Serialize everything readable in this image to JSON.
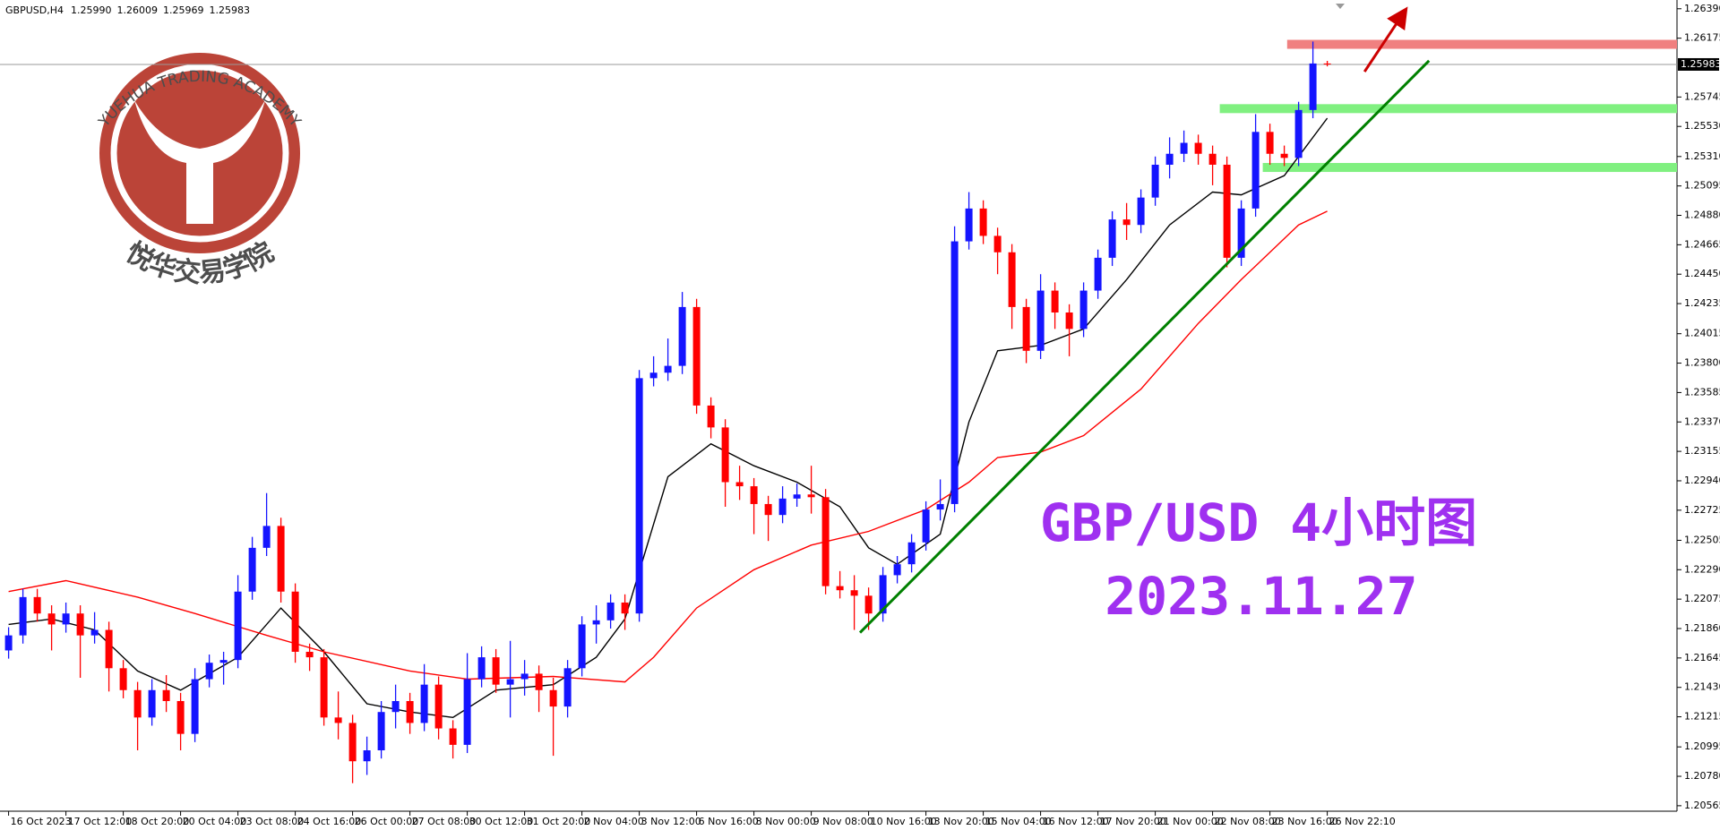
{
  "chart_data": {
    "type": "candlestick",
    "symbol": "GBPUSD,H4",
    "last_value_labels": [
      "1.25990",
      "1.26009",
      "1.25969",
      "1.25983"
    ],
    "xlim": [
      -0.6,
      116.4
    ],
    "ylim": [
      1.20525,
      1.26454
    ],
    "up_color": "#1414ff",
    "down_color": "#ff0000",
    "xticks": [
      {
        "value": 0,
        "label": "16 Oct 2023"
      },
      {
        "value": 4,
        "label": "17 Oct 12:00"
      },
      {
        "value": 8,
        "label": "18 Oct 20:00"
      },
      {
        "value": 12,
        "label": "20 Oct 04:00"
      },
      {
        "value": 16,
        "label": "23 Oct 08:00"
      },
      {
        "value": 20,
        "label": "24 Oct 16:00"
      },
      {
        "value": 24,
        "label": "26 Oct 00:00"
      },
      {
        "value": 28,
        "label": "27 Oct 08:00"
      },
      {
        "value": 32,
        "label": "30 Oct 12:00"
      },
      {
        "value": 36,
        "label": "31 Oct 20:00"
      },
      {
        "value": 40,
        "label": "2 Nov 04:00"
      },
      {
        "value": 44,
        "label": "3 Nov 12:00"
      },
      {
        "value": 48,
        "label": "6 Nov 16:00"
      },
      {
        "value": 52,
        "label": "8 Nov 00:00"
      },
      {
        "value": 56,
        "label": "9 Nov 08:00"
      },
      {
        "value": 60,
        "label": "10 Nov 16:00"
      },
      {
        "value": 64,
        "label": "13 Nov 20:00"
      },
      {
        "value": 68,
        "label": "15 Nov 04:00"
      },
      {
        "value": 72,
        "label": "16 Nov 12:00"
      },
      {
        "value": 76,
        "label": "17 Nov 20:00"
      },
      {
        "value": 80,
        "label": "21 Nov 00:00"
      },
      {
        "value": 84,
        "label": "22 Nov 08:00"
      },
      {
        "value": 88,
        "label": "23 Nov 16:00"
      },
      {
        "value": 92,
        "label": "26 Nov 22:10"
      }
    ],
    "yticks": [
      {
        "value": 1.2639,
        "label": "1.26390"
      },
      1.26175,
      1.25745,
      {
        "value": 1.2553,
        "label": "1.25530"
      },
      {
        "value": 1.2531,
        "label": "1.25310"
      },
      1.25095,
      {
        "value": 1.2488,
        "label": "1.24880"
      },
      1.24665,
      {
        "value": 1.2445,
        "label": "1.24450"
      },
      1.24235,
      1.24015,
      {
        "value": 1.238,
        "label": "1.23800"
      },
      1.23585,
      {
        "value": 1.2337,
        "label": "1.23370"
      },
      1.23155,
      {
        "value": 1.2294,
        "label": "1.22940"
      },
      1.22725,
      1.22505,
      {
        "value": 1.2229,
        "label": "1.22290"
      },
      1.22075,
      {
        "value": 1.2186,
        "label": "1.21860"
      },
      1.21645,
      {
        "value": 1.2143,
        "label": "1.21430"
      },
      1.21215,
      1.20995,
      {
        "value": 1.2078,
        "label": "1.20780"
      },
      1.20565
    ],
    "open": [
      1.217,
      1.2181,
      1.2209,
      1.2197,
      1.2189,
      1.2197,
      1.2181,
      1.2185,
      1.2157,
      1.2141,
      1.2121,
      1.2141,
      1.2133,
      1.2109,
      1.2149,
      1.2161,
      1.2163,
      1.2213,
      1.2245,
      1.2261,
      1.2213,
      1.2169,
      1.2165,
      1.2121,
      1.2117,
      1.2089,
      1.2097,
      1.2125,
      1.2133,
      1.2117,
      1.2145,
      1.2113,
      1.2101,
      1.2149,
      1.2165,
      1.2145,
      1.2149,
      1.2153,
      1.2141,
      1.2129,
      1.2157,
      1.2189,
      1.2192,
      1.2205,
      1.2197,
      1.2369,
      1.2373,
      1.2378,
      1.2421,
      1.2349,
      1.2333,
      1.2293,
      1.229,
      1.2277,
      1.2269,
      1.2281,
      1.2284,
      1.2282,
      1.2217,
      1.2214,
      1.221,
      1.2197,
      1.2225,
      1.2233,
      1.2249,
      1.2273,
      1.2277,
      1.2469,
      1.2493,
      1.2473,
      1.2461,
      1.2421,
      1.2389,
      1.2433,
      1.2417,
      1.2405,
      1.2433,
      1.2457,
      1.2485,
      1.2481,
      1.2501,
      1.2525,
      1.2533,
      1.2541,
      1.2533,
      1.2525,
      1.2457,
      1.2493,
      1.2549,
      1.2533,
      1.253,
      1.2565,
      1.2599
    ],
    "high": [
      1.2187,
      1.2215,
      1.2215,
      1.2203,
      1.2205,
      1.2203,
      1.2198,
      1.2191,
      1.2163,
      1.2147,
      1.2149,
      1.2152,
      1.2139,
      1.2157,
      1.2167,
      1.2169,
      1.2225,
      1.2253,
      1.2285,
      1.2267,
      1.2219,
      1.2175,
      1.2171,
      1.214,
      1.2123,
      1.2107,
      1.2133,
      1.2145,
      1.2139,
      1.216,
      1.2151,
      1.2119,
      1.2168,
      1.2173,
      1.2171,
      1.2177,
      1.2163,
      1.2159,
      1.215,
      1.2163,
      1.2195,
      1.2203,
      1.2211,
      1.2211,
      1.2375,
      1.2385,
      1.2398,
      1.2432,
      1.2427,
      1.2355,
      1.2339,
      1.2305,
      1.2296,
      1.2283,
      1.229,
      1.2292,
      1.2305,
      1.2288,
      1.2228,
      1.2225,
      1.2216,
      1.2231,
      1.2239,
      1.2255,
      1.2279,
      1.2295,
      1.248,
      1.2505,
      1.2499,
      1.2479,
      1.2467,
      1.2427,
      1.2445,
      1.2439,
      1.2423,
      1.2439,
      1.2463,
      1.2491,
      1.2497,
      1.2507,
      1.2531,
      1.2545,
      1.255,
      1.2547,
      1.2539,
      1.2531,
      1.2499,
      1.2562,
      1.2555,
      1.2539,
      1.2571,
      1.2615,
      1.26009
    ],
    "low": [
      1.2164,
      1.2175,
      1.2191,
      1.217,
      1.2183,
      1.215,
      1.2175,
      1.214,
      1.2135,
      1.2097,
      1.2115,
      1.2125,
      1.2097,
      1.2103,
      1.2143,
      1.2145,
      1.2157,
      1.2207,
      1.2239,
      1.2205,
      1.2161,
      1.2155,
      1.2115,
      1.2105,
      1.2073,
      1.2079,
      1.2091,
      1.2113,
      1.2109,
      1.2111,
      1.2105,
      1.2091,
      1.2095,
      1.2143,
      1.2139,
      1.2121,
      1.2137,
      1.2125,
      1.2093,
      1.2121,
      1.2151,
      1.2175,
      1.2186,
      1.2185,
      1.2191,
      1.2363,
      1.2367,
      1.2372,
      1.2343,
      1.2325,
      1.2275,
      1.228,
      1.2255,
      1.225,
      1.2263,
      1.2275,
      1.227,
      1.2211,
      1.2208,
      1.2185,
      1.2185,
      1.2191,
      1.2219,
      1.2227,
      1.2243,
      1.2265,
      1.2271,
      1.2463,
      1.2467,
      1.2445,
      1.2405,
      1.238,
      1.2383,
      1.2405,
      1.2385,
      1.2399,
      1.2427,
      1.2451,
      1.247,
      1.2475,
      1.2495,
      1.2515,
      1.2527,
      1.2525,
      1.251,
      1.245,
      1.2451,
      1.2487,
      1.2525,
      1.2524,
      1.2524,
      1.2559,
      1.25969
    ],
    "close": [
      1.2181,
      1.2209,
      1.2197,
      1.2189,
      1.2197,
      1.2181,
      1.2185,
      1.2157,
      1.2141,
      1.2121,
      1.2141,
      1.2133,
      1.2109,
      1.2149,
      1.2161,
      1.2163,
      1.2213,
      1.2245,
      1.2261,
      1.2213,
      1.2169,
      1.2165,
      1.2121,
      1.2117,
      1.2089,
      1.2097,
      1.2125,
      1.2133,
      1.2117,
      1.2145,
      1.2113,
      1.2101,
      1.2149,
      1.2165,
      1.2145,
      1.2149,
      1.2153,
      1.2141,
      1.2129,
      1.2157,
      1.2189,
      1.2192,
      1.2205,
      1.2197,
      1.2369,
      1.2373,
      1.2378,
      1.2421,
      1.2349,
      1.2333,
      1.2293,
      1.229,
      1.2277,
      1.2269,
      1.2281,
      1.2284,
      1.2282,
      1.2217,
      1.2214,
      1.221,
      1.2197,
      1.2225,
      1.2233,
      1.2249,
      1.2273,
      1.2277,
      1.2469,
      1.2493,
      1.2473,
      1.2461,
      1.2421,
      1.2389,
      1.2433,
      1.2417,
      1.2405,
      1.2433,
      1.2457,
      1.2485,
      1.2481,
      1.2501,
      1.2525,
      1.2533,
      1.2541,
      1.2533,
      1.2525,
      1.2457,
      1.2493,
      1.2549,
      1.2533,
      1.253,
      1.2565,
      1.2599,
      1.25983
    ],
    "ma_lines": [
      {
        "color": "#000000",
        "x": [
          0,
          3,
          6,
          9,
          12,
          16,
          19,
          22,
          25,
          28,
          31,
          34,
          38,
          41,
          43,
          46,
          49,
          52,
          55,
          58,
          60,
          62,
          65,
          67,
          69,
          72,
          75,
          78,
          81,
          84,
          86,
          89,
          92
        ],
        "values": [
          1.2189,
          1.2193,
          1.2185,
          1.2155,
          1.2141,
          1.2165,
          1.2201,
          1.2169,
          1.2131,
          1.2125,
          1.2121,
          1.2141,
          1.2145,
          1.2165,
          1.2193,
          1.2297,
          1.2321,
          1.2305,
          1.2293,
          1.2275,
          1.2245,
          1.2233,
          1.2255,
          1.2337,
          1.2389,
          1.2393,
          1.2405,
          1.2441,
          1.2481,
          1.2505,
          1.2503,
          1.2517,
          1.2559
        ]
      },
      {
        "color": "#ff0000",
        "x": [
          0,
          4,
          9,
          13,
          18,
          22,
          28,
          32,
          38,
          43,
          45,
          48,
          52,
          56,
          60,
          64,
          67,
          69,
          72,
          75,
          79,
          83,
          86,
          90,
          92
        ],
        "values": [
          1.2213,
          1.2221,
          1.2209,
          1.2197,
          1.2181,
          1.2169,
          1.2155,
          1.2149,
          1.2151,
          1.2147,
          1.2165,
          1.2201,
          1.2229,
          1.2247,
          1.2257,
          1.2273,
          1.2293,
          1.2311,
          1.2315,
          1.2327,
          1.2361,
          1.2409,
          1.2441,
          1.2481,
          1.2491
        ]
      }
    ],
    "levels": [
      {
        "value": 1.2613,
        "from": 89.2,
        "color": "#f08080"
      },
      {
        "value": 1.2566,
        "from": 84.5,
        "color": "#80f080"
      },
      {
        "value": 1.2523,
        "from": 87.5,
        "color": "#80f080"
      }
    ],
    "trendline": {
      "x": [
        59.4,
        99.1
      ],
      "values": [
        1.2183,
        1.2601
      ],
      "color": "#008000"
    },
    "arrow": {
      "x": [
        94.6,
        97.2
      ],
      "values": [
        1.2593,
        1.2634
      ],
      "color": "#cc0000"
    },
    "annotations": [
      "GBP/USD 4小时图",
      "2023.11.27"
    ],
    "watermark": {
      "title": "YUEHUA TRADING ACADEMY",
      "subtitle": "悦华交易学院"
    }
  }
}
